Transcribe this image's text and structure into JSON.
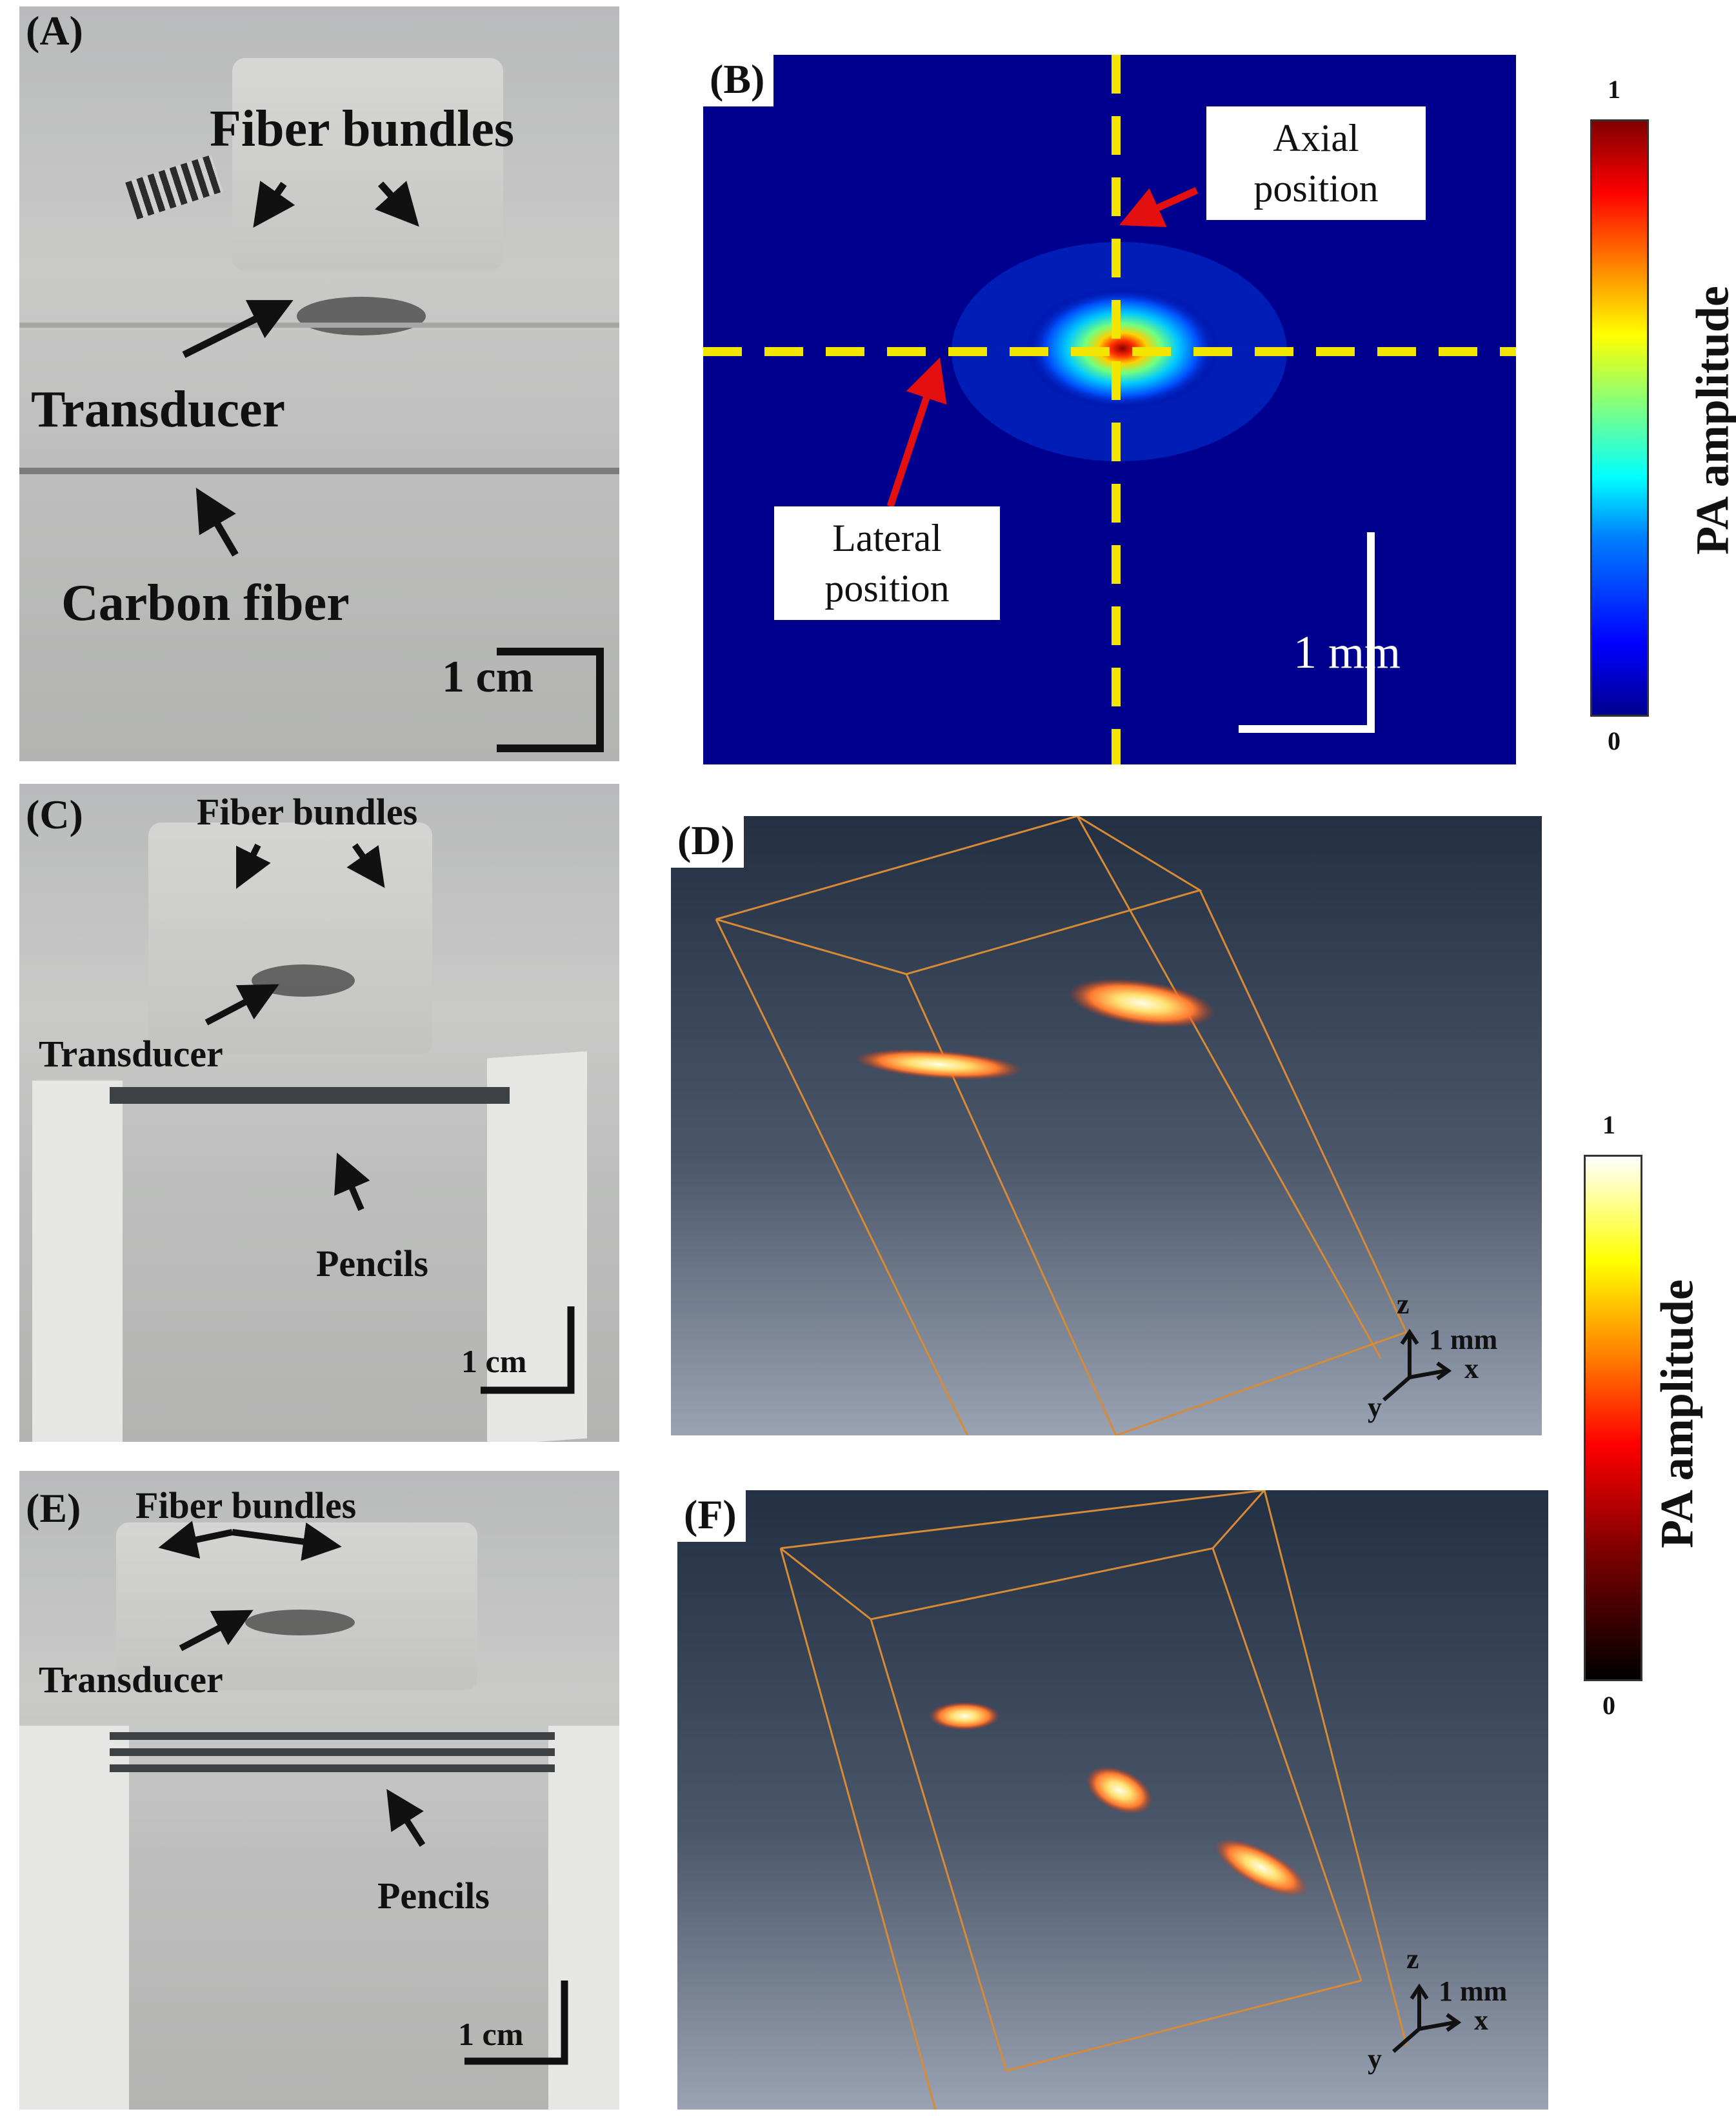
{
  "panels": {
    "A": {
      "label": "(A)",
      "fiber_bundles": "Fiber bundles",
      "transducer": "Transducer",
      "carbon_fiber": "Carbon fiber",
      "scale": "1 cm"
    },
    "B": {
      "label": "(B)",
      "axial": "Axial position",
      "lateral": "Lateral position",
      "scale": "1 mm"
    },
    "C": {
      "label": "(C)",
      "fiber_bundles": "Fiber bundles",
      "transducer": "Transducer",
      "pencils": "Pencils",
      "scale": "1 cm"
    },
    "D": {
      "label": "(D)",
      "axis_z": "z",
      "axis_x": "x",
      "axis_y": "y",
      "scale": "1 mm"
    },
    "E": {
      "label": "(E)",
      "fiber_bundles": "Fiber bundles",
      "transducer": "Transducer",
      "pencils": "Pencils",
      "scale": "1 cm"
    },
    "F": {
      "label": "(F)",
      "axis_z": "z",
      "axis_x": "x",
      "axis_y": "y",
      "scale": "1 mm"
    }
  },
  "colorbars": {
    "jet": {
      "title": "PA amplitude",
      "max": "1",
      "min": "0",
      "colormap": "jet"
    },
    "hot": {
      "title": "PA amplitude",
      "max": "1",
      "min": "0",
      "colormap": "hot"
    }
  },
  "colors": {
    "crosshair": "#f2e600",
    "arrow_red": "#e41010",
    "arrow_black": "#111111",
    "box_edge": "#d88a35"
  }
}
